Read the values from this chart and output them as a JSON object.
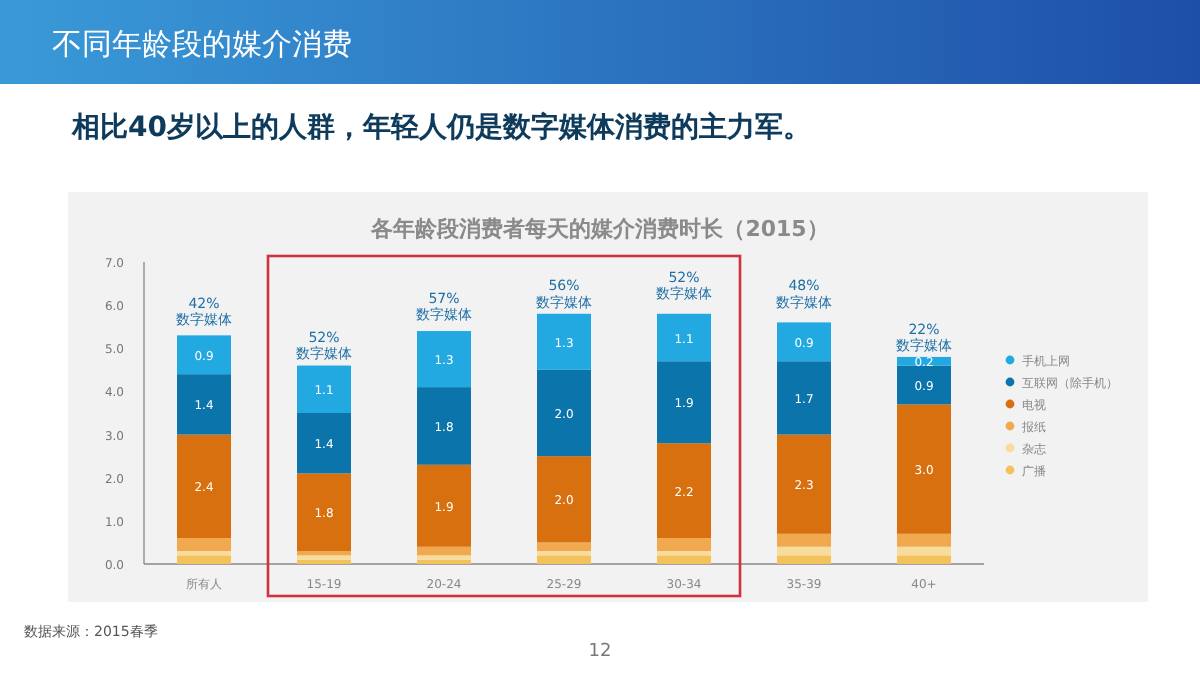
{
  "chart_data": {
    "type": "bar",
    "stacked": true,
    "title": "各年龄段消费者每天的媒介消费时长（2015）",
    "subtitle": "相比40岁以上的人群，年轻人仍是数字媒体消费的主力军。",
    "categories": [
      "所有人",
      "15-19",
      "20-24",
      "25-29",
      "30-34",
      "35-39",
      "40+"
    ],
    "series": [
      {
        "name": "广播",
        "color": "#f3c25a",
        "values": [
          0.2,
          0.1,
          0.1,
          0.2,
          0.2,
          0.2,
          0.2
        ]
      },
      {
        "name": "杂志",
        "color": "#f8dc9c",
        "values": [
          0.1,
          0.1,
          0.1,
          0.1,
          0.1,
          0.2,
          0.2
        ]
      },
      {
        "name": "报纸",
        "color": "#f0a94e",
        "values": [
          0.3,
          0.1,
          0.2,
          0.2,
          0.3,
          0.3,
          0.3
        ]
      },
      {
        "name": "电视",
        "color": "#d8700f",
        "values": [
          2.4,
          1.8,
          1.9,
          2.0,
          2.2,
          2.3,
          3.0
        ],
        "value_labels": [
          "2.4",
          "1.8",
          "1.9",
          "2.0",
          "2.2",
          "2.3",
          "3.0"
        ]
      },
      {
        "name": "互联网（除手机）",
        "color": "#0b74ab",
        "values": [
          1.4,
          1.4,
          1.8,
          2.0,
          1.9,
          1.7,
          0.9
        ],
        "value_labels": [
          "1.4",
          "1.4",
          "1.8",
          "2.0",
          "1.9",
          "1.7",
          "0.9"
        ]
      },
      {
        "name": "手机上网",
        "color": "#22a9e1",
        "values": [
          0.9,
          1.1,
          1.3,
          1.3,
          1.1,
          0.9,
          0.2
        ],
        "value_labels": [
          "0.9",
          "1.1",
          "1.3",
          "1.3",
          "1.1",
          "0.9",
          "0.2"
        ]
      }
    ],
    "ylim": [
      0,
      7
    ],
    "yticks": [
      {
        "value": 0,
        "label": "0.0"
      },
      {
        "value": 1,
        "label": "1.0"
      },
      {
        "value": 2,
        "label": "2.0"
      },
      {
        "value": 3,
        "label": "3.0"
      },
      {
        "value": 4,
        "label": "4.0"
      },
      {
        "value": 5,
        "label": "5.0"
      },
      {
        "value": 6,
        "label": "6.0"
      },
      {
        "value": 7,
        "label": "7.0"
      }
    ],
    "grid": false,
    "legend": "right",
    "annotations": [
      {
        "text": "42%\n数字媒体",
        "x": "所有人",
        "y": 5.2
      },
      {
        "text": "52%\n数字媒体",
        "x": "15-19",
        "y": 4.4
      },
      {
        "text": "57%\n数字媒体",
        "x": "20-24",
        "y": 5.3
      },
      {
        "text": "56%\n数字媒体",
        "x": "25-29",
        "y": 5.6
      },
      {
        "text": "52%\n数字媒体",
        "x": "30-34",
        "y": 5.8
      },
      {
        "text": "48%\n数字媒体",
        "x": "35-39",
        "y": 5.6
      },
      {
        "text": "22%\n数字媒体",
        "x": "40+",
        "y": 4.6
      },
      "不同年龄段的媒介消费",
      "数据来源：2015春季",
      "12"
    ]
  }
}
